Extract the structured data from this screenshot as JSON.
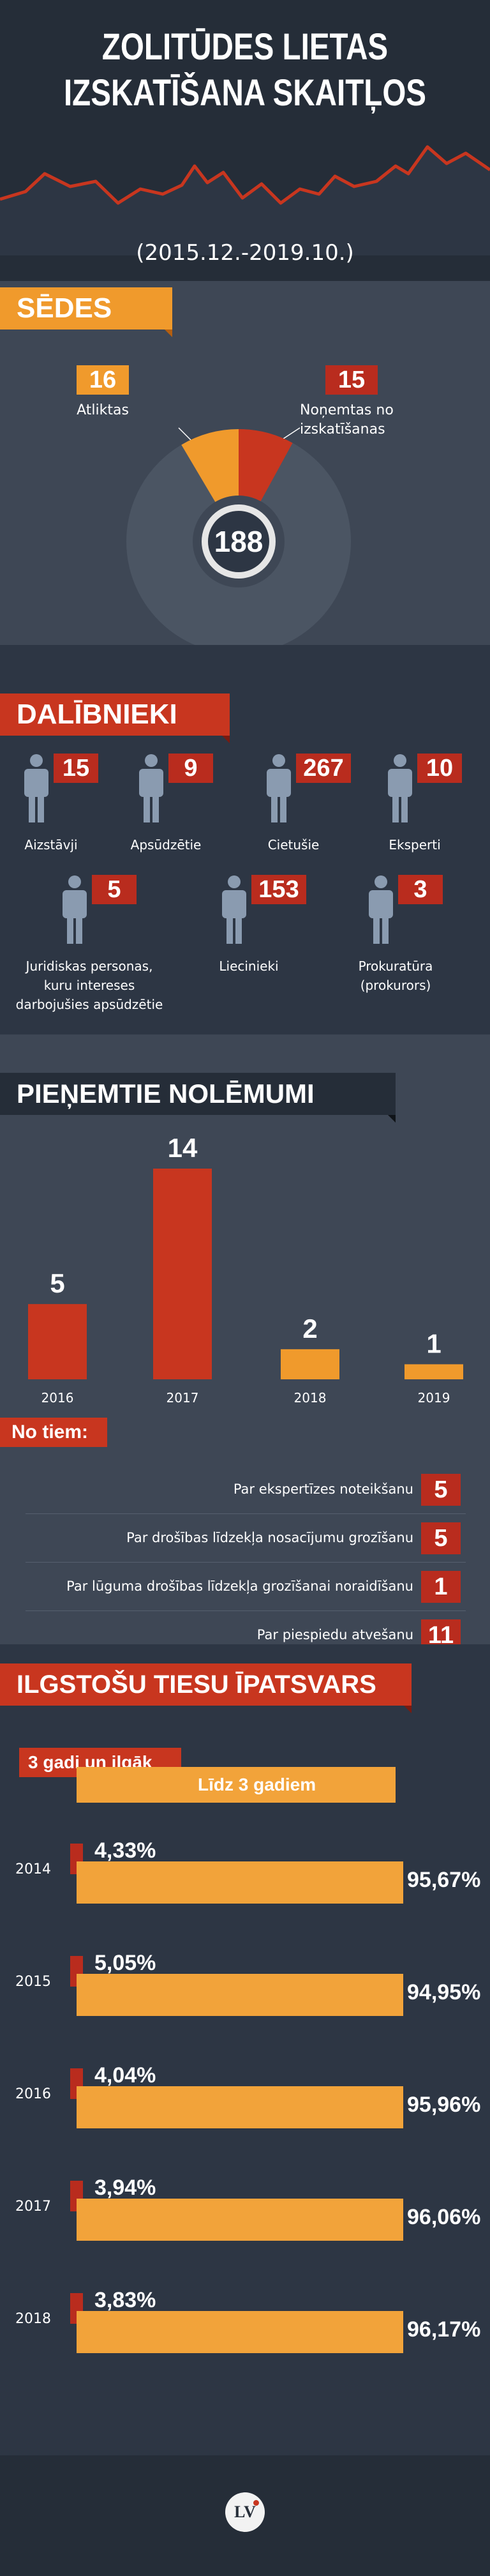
{
  "header": {
    "title_line1": "Zolitūdes lietas",
    "title_line2": "izskatīšana skaitļos",
    "period": "(2015.12.-2019.10.)"
  },
  "sedes": {
    "heading": "SĒDES",
    "atliktas_value": "16",
    "atliktas_label": "Atliktas",
    "nonemtas_value": "15",
    "nonemtas_label_line1": "Noņemtas no",
    "nonemtas_label_line2": "izskatīšanas",
    "total": "188",
    "colors": {
      "atliktas": "#f2a33a",
      "nonemtas": "#b92c1e",
      "rest": "#4b5563"
    }
  },
  "dalibnieki": {
    "heading": "DALĪBNIEKI",
    "items": [
      {
        "value": "15",
        "label": "Aizstāvji"
      },
      {
        "value": "9",
        "label": "Apsūdzētie"
      },
      {
        "value": "267",
        "label": "Cietušie"
      },
      {
        "value": "10",
        "label": "Eksperti"
      },
      {
        "value": "5",
        "label_lines": [
          "Juridiskas personas,",
          "kuru intereses",
          "darbojušies apsūdzētie"
        ]
      },
      {
        "value": "153",
        "label": "Liecinieki"
      },
      {
        "value": "3",
        "label_lines": [
          "Prokuratūra",
          "(prokurors)"
        ]
      }
    ]
  },
  "nolemumi": {
    "heading": "PIEŅEMTIE NOLĒMUMI"
  },
  "chart_data": {
    "type": "bar",
    "categories": [
      "2016",
      "2017",
      "2018",
      "2019"
    ],
    "values": [
      5,
      14,
      2,
      1
    ],
    "colors": [
      "#c8361f",
      "#c8361f",
      "#f09a2c",
      "#f09a2c"
    ],
    "title": "PIEŅEMTIE NOLĒMUMI",
    "xlabel": "",
    "ylabel": "",
    "ylim": [
      0,
      14
    ]
  },
  "no_tiem": {
    "heading": "No tiem:",
    "rows": [
      {
        "text": "Par ekspertīzes noteikšanu",
        "value": "5"
      },
      {
        "text": "Par drošības līdzekļa nosacījumu grozīšanu",
        "value": "5"
      },
      {
        "text": "Par lūguma drošības līdzekļa grozīšanai noraidīšanu",
        "value": "1"
      },
      {
        "text": "Par piespiedu atvešanu",
        "value": "11"
      }
    ]
  },
  "ilgstoso": {
    "heading": "ILGSTOŠU TIESU ĪPATSVARS",
    "legend_red": "3 gadi un ilgāk",
    "legend_orange": "Līdz 3 gadiem",
    "rows": [
      {
        "year": "2014",
        "small": "4,33%",
        "big": "95,67%"
      },
      {
        "year": "2015",
        "small": "5,05%",
        "big": "94,95%"
      },
      {
        "year": "2016",
        "small": "4,04%",
        "big": "95,96%"
      },
      {
        "year": "2017",
        "small": "3,94%",
        "big": "96,06%"
      },
      {
        "year": "2018",
        "small": "3,83%",
        "big": "96,17%"
      }
    ]
  },
  "footer": {
    "logo_text": "LV"
  }
}
